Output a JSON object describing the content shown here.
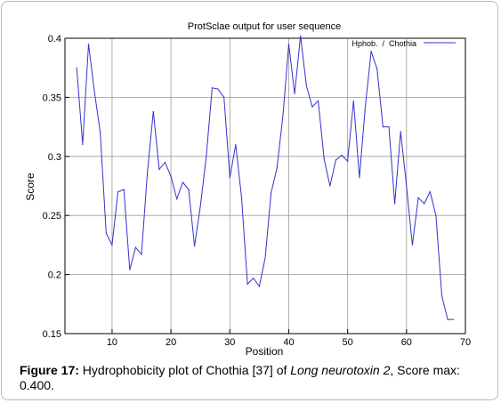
{
  "chart_data": {
    "type": "line",
    "title": "ProtSclae output for user sequence",
    "xlabel": "Position",
    "ylabel": "Score",
    "xlim": [
      2,
      70
    ],
    "ylim": [
      0.15,
      0.4
    ],
    "xticks": [
      10,
      20,
      30,
      40,
      50,
      60,
      70
    ],
    "yticks": [
      0.15,
      0.2,
      0.25,
      0.3,
      0.35,
      0.4
    ],
    "ytick_labels": [
      "0.15",
      "0.2",
      "0.25",
      "0.3",
      "0.35",
      "0.4"
    ],
    "grid": true,
    "legend_position": "top-right",
    "series": [
      {
        "name": "Hphob.  /  Chothia",
        "color": "#3333cc",
        "x": [
          4,
          5,
          6,
          7,
          8,
          9,
          10,
          11,
          12,
          13,
          14,
          15,
          16,
          17,
          18,
          19,
          20,
          21,
          22,
          23,
          24,
          25,
          26,
          27,
          28,
          29,
          30,
          31,
          32,
          33,
          34,
          35,
          36,
          37,
          38,
          39,
          40,
          41,
          42,
          43,
          44,
          45,
          46,
          47,
          48,
          49,
          50,
          51,
          52,
          53,
          54,
          55,
          56,
          57,
          58,
          59,
          60,
          61,
          62,
          63,
          64,
          65,
          66,
          67,
          68
        ],
        "values": [
          0.375,
          0.31,
          0.395,
          0.355,
          0.32,
          0.235,
          0.225,
          0.27,
          0.272,
          0.204,
          0.223,
          0.217,
          0.286,
          0.338,
          0.289,
          0.295,
          0.283,
          0.264,
          0.278,
          0.272,
          0.224,
          0.258,
          0.3,
          0.358,
          0.357,
          0.35,
          0.282,
          0.31,
          0.265,
          0.192,
          0.197,
          0.19,
          0.214,
          0.269,
          0.29,
          0.334,
          0.395,
          0.353,
          0.402,
          0.36,
          0.342,
          0.347,
          0.298,
          0.275,
          0.297,
          0.301,
          0.296,
          0.347,
          0.282,
          0.342,
          0.389,
          0.374,
          0.325,
          0.325,
          0.26,
          0.321,
          0.275,
          0.225,
          0.265,
          0.26,
          0.27,
          0.25,
          0.182,
          0.162,
          0.162
        ]
      }
    ]
  },
  "caption": {
    "label": "Figure 17:",
    "text_1": " Hydrophobicity plot of Chothia [37] of ",
    "italic": "Long neurotoxin 2",
    "text_2": ", Score max: 0.400."
  },
  "colors": {
    "line": "#3333cc",
    "grid": "#9a9a9a",
    "frame": "#b9b9b9"
  }
}
